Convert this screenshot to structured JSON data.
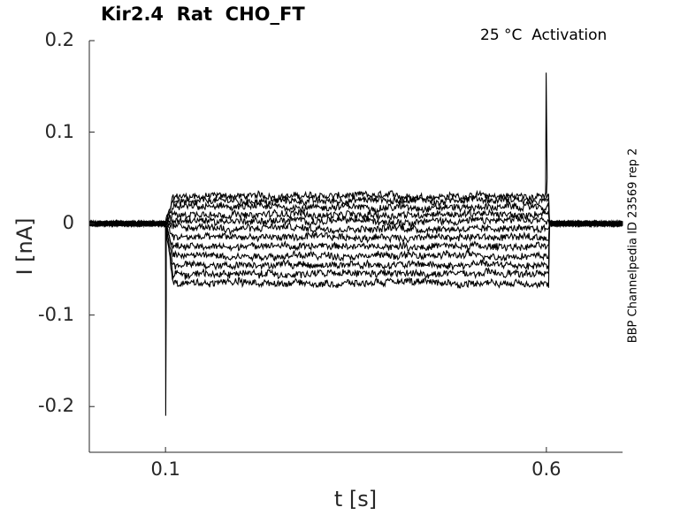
{
  "chart_data": {
    "type": "line",
    "title": "Kir2.4  Rat  CHO_FT",
    "annotation": "25 °C  Activation",
    "side_label": "BBP Channelpedia ID 23569 rep 2",
    "xlabel": "t [s]",
    "ylabel": "I [nA]",
    "xlim": [
      0.0,
      0.7
    ],
    "ylim": [
      -0.25,
      0.2
    ],
    "xticks": [
      {
        "value": 0.1,
        "label": "0.1"
      },
      {
        "value": 0.6,
        "label": "0.6"
      }
    ],
    "yticks": [
      {
        "value": 0.2,
        "label": "0.2"
      },
      {
        "value": 0.1,
        "label": "0.1"
      },
      {
        "value": 0.0,
        "label": "0"
      },
      {
        "value": -0.1,
        "label": "-0.1"
      },
      {
        "value": -0.2,
        "label": "-0.2"
      }
    ],
    "grid": false,
    "step_window": [
      0.1,
      0.6
    ],
    "trace_color": "#000000",
    "step_levels": [
      0.03,
      0.025,
      0.018,
      0.01,
      0.003,
      -0.005,
      -0.015,
      -0.025,
      -0.035,
      -0.045,
      -0.055,
      -0.065
    ],
    "onset_peak": -0.21,
    "offset_peak": 0.165
  }
}
